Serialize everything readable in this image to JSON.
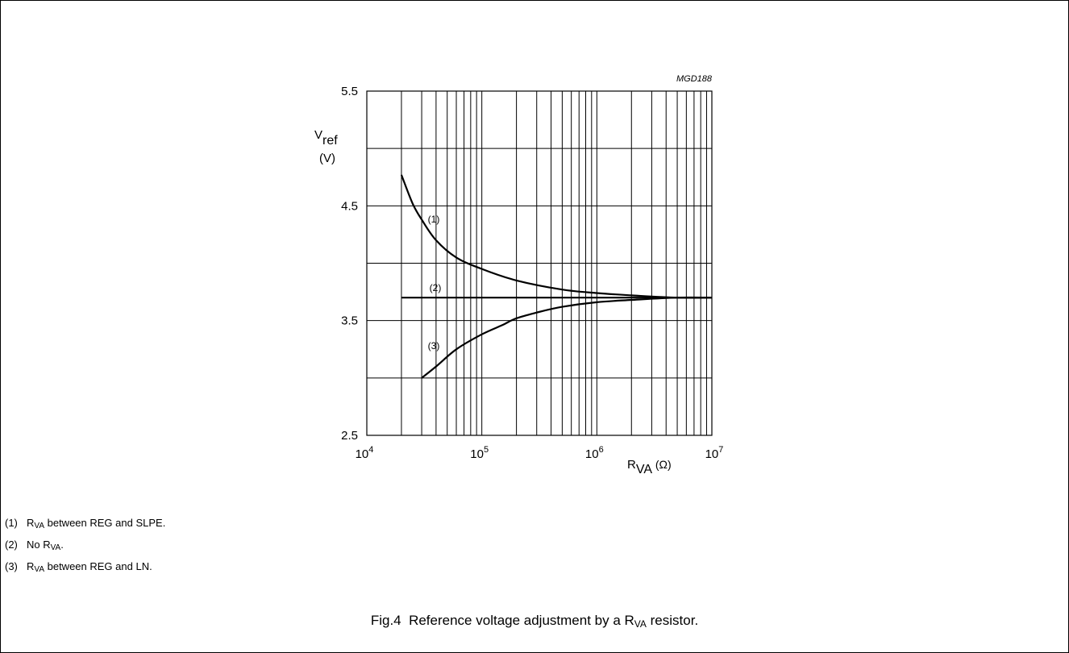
{
  "figure_code": "MGD188",
  "caption": {
    "prefix": "Fig.4",
    "text_before": "Reference voltage adjustment by a R",
    "sub": "VA",
    "text_after": " resistor."
  },
  "notes": [
    {
      "num": "(1)",
      "pre": "R",
      "sub": "VA",
      "post": " between REG and SLPE."
    },
    {
      "num": "(2)",
      "pre": "No R",
      "sub": "VA",
      "post": "."
    },
    {
      "num": "(3)",
      "pre": "R",
      "sub": "VA",
      "post": " between REG and LN."
    }
  ],
  "chart_data": {
    "type": "line",
    "title": "",
    "xlabel": {
      "main": "R",
      "sub": "VA",
      "unit": " (Ω)"
    },
    "ylabel": {
      "main": "V",
      "sub": "ref",
      "unit": "(V)"
    },
    "x_scale": "log",
    "xlim": [
      10000,
      10000000
    ],
    "ylim": [
      2.5,
      5.5
    ],
    "x_ticks": [
      {
        "value": 10000,
        "base": "10",
        "exp": "4"
      },
      {
        "value": 100000,
        "base": "10",
        "exp": "5"
      },
      {
        "value": 1000000,
        "base": "10",
        "exp": "6"
      },
      {
        "value": 10000000,
        "base": "10",
        "exp": "7"
      }
    ],
    "y_ticks": [
      "2.5",
      "3.5",
      "4.5",
      "5.5"
    ],
    "grid": true,
    "series": [
      {
        "name": "(1)",
        "x": [
          20000,
          25000,
          30000,
          40000,
          60000,
          100000,
          200000,
          500000,
          1000000,
          2000000,
          5000000,
          10000000
        ],
        "y": [
          4.77,
          4.52,
          4.38,
          4.2,
          4.05,
          3.95,
          3.85,
          3.77,
          3.74,
          3.72,
          3.7,
          3.7
        ]
      },
      {
        "name": "(2)",
        "x": [
          20000,
          10000000
        ],
        "y": [
          3.7,
          3.7
        ]
      },
      {
        "name": "(3)",
        "x": [
          30000,
          40000,
          60000,
          100000,
          150000,
          200000,
          300000,
          500000,
          1000000,
          2000000,
          5000000,
          10000000
        ],
        "y": [
          3.0,
          3.1,
          3.25,
          3.38,
          3.46,
          3.52,
          3.57,
          3.62,
          3.66,
          3.68,
          3.7,
          3.7
        ]
      }
    ]
  }
}
